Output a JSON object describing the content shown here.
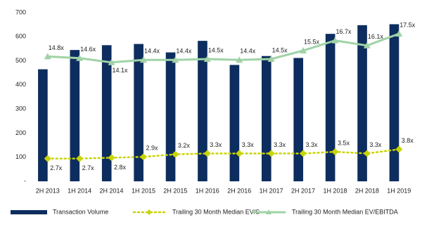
{
  "chart_data": {
    "type": "bar",
    "categories": [
      "2H 2013",
      "1H 2014",
      "2H 2014",
      "1H 2015",
      "2H 2015",
      "1H 2016",
      "2H 2016",
      "1H 2017",
      "2H 2017",
      "1H 2018",
      "2H 2018",
      "1H 2019"
    ],
    "series": [
      {
        "name": "Transaction Volume",
        "type": "bar",
        "color": "#0d2d5e",
        "values": [
          465,
          545,
          565,
          570,
          535,
          583,
          483,
          520,
          512,
          612,
          648,
          652
        ]
      },
      {
        "name": "Trailing 30 Month Median EV/S",
        "type": "line",
        "axis": "y2",
        "color": "#c8d400",
        "marker": "diamond",
        "dash": true,
        "values": [
          2.7,
          2.7,
          2.8,
          2.9,
          3.2,
          3.3,
          3.3,
          3.3,
          3.3,
          3.5,
          3.3,
          3.8
        ],
        "value_labels": [
          "2.7x",
          "2.7x",
          "2.8x",
          "2.9x",
          "3.2x",
          "3.3x",
          "3.3x",
          "3.3x",
          "3.3x",
          "3.5x",
          "3.3x",
          "3.8x"
        ]
      },
      {
        "name": "Trailing 30 Month Median EV/EBITDA",
        "type": "line",
        "axis": "y2",
        "color": "#9fd3a6",
        "marker": "triangle",
        "dash": false,
        "values": [
          14.8,
          14.6,
          14.1,
          14.4,
          14.4,
          14.5,
          14.4,
          14.5,
          15.5,
          16.7,
          16.1,
          17.5
        ],
        "value_labels": [
          "14.8x",
          "14.6x",
          "14.1x",
          "14.4x",
          "14.4x",
          "14.5x",
          "14.4x",
          "14.5x",
          "15.5x",
          "16.7x",
          "16.1x",
          "17.5x"
        ]
      }
    ],
    "ylim": [
      0,
      700
    ],
    "yticks": [
      {
        "value": 0,
        "label": "-"
      },
      100,
      200,
      300,
      400,
      500,
      600,
      700
    ],
    "y2lim": [
      0,
      20
    ],
    "grid": false
  }
}
